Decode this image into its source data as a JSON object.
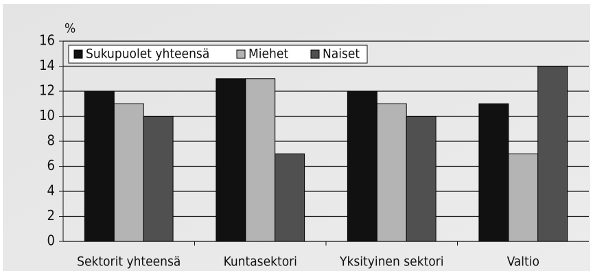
{
  "chart_data": {
    "type": "bar",
    "y_label": "%",
    "categories": [
      "Sektorit yhteensä",
      "Kuntasektori",
      "Yksityinen sektori",
      "Valtio"
    ],
    "series": [
      {
        "name": "Sukupuolet yhteensä",
        "color": "#111111",
        "values": [
          12,
          13,
          12,
          11
        ]
      },
      {
        "name": "Miehet",
        "color": "#b4b4b4",
        "values": [
          11,
          13,
          11,
          7
        ]
      },
      {
        "name": "Naiset",
        "color": "#505050",
        "values": [
          10,
          7,
          10,
          14
        ]
      }
    ],
    "ylim": [
      0,
      16
    ],
    "yticks": [
      0,
      2,
      4,
      6,
      8,
      10,
      12,
      14,
      16
    ],
    "grid": true,
    "legend": "top-left"
  }
}
